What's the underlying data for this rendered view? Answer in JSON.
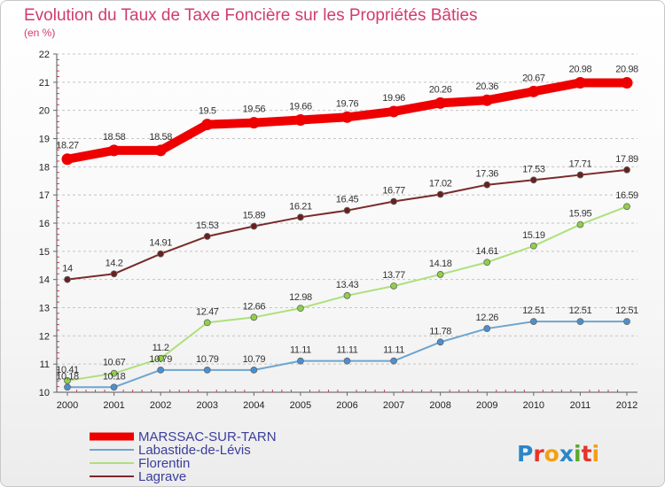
{
  "title": "Evolution du Taux de Taxe Foncière sur les Propriétés Bâties",
  "subtitle": "(en %)",
  "logo": {
    "letters": [
      "P",
      "r",
      "o",
      "x",
      "i",
      "t",
      "i"
    ],
    "colors": [
      "#2b86c8",
      "#e6342a",
      "#f2a014",
      "#2b86c8",
      "#5aaa2a",
      "#e6342a",
      "#f2a014"
    ]
  },
  "chart_data": {
    "type": "line",
    "title": "Evolution du Taux de Taxe Foncière sur les Propriétés Bâties",
    "ylabel": "(en %)",
    "xlabel": "",
    "ylim": [
      10,
      22
    ],
    "yticks": [
      10,
      11,
      12,
      13,
      14,
      15,
      16,
      17,
      18,
      19,
      20,
      21,
      22
    ],
    "x": [
      "2000",
      "2001",
      "2002",
      "2003",
      "2004",
      "2005",
      "2006",
      "2007",
      "2008",
      "2009",
      "2010",
      "2011",
      "2012"
    ],
    "legend_position": "bottom-left",
    "series": [
      {
        "name": "MARSSAC-SUR-TARN",
        "color": "#ee0000",
        "style": "thick",
        "values": [
          18.27,
          18.58,
          18.58,
          19.5,
          19.56,
          19.66,
          19.76,
          19.96,
          20.26,
          20.36,
          20.67,
          20.98,
          20.98
        ],
        "labels": [
          "18.27",
          "18.58",
          "18.58",
          "19.5",
          "19.56",
          "19.66",
          "19.76",
          "19.96",
          "20.26",
          "20.36",
          "20.67",
          "20.98",
          "20.98"
        ]
      },
      {
        "name": "Labastide-de-Lévis",
        "color": "#6fa5cf",
        "point_color": "#4a90d0",
        "style": "thin",
        "values": [
          10.18,
          10.18,
          10.79,
          10.79,
          10.79,
          11.11,
          11.11,
          11.11,
          11.78,
          12.26,
          12.51,
          12.51,
          12.51
        ],
        "labels": [
          "10.18",
          "10.18",
          "10.79",
          "10.79",
          "10.79",
          "11.11",
          "11.11",
          "11.11",
          "11.78",
          "12.26",
          "12.51",
          "12.51",
          "12.51"
        ]
      },
      {
        "name": "Florentin",
        "color": "#aee07c",
        "point_color": "#8ed04a",
        "style": "thin",
        "values": [
          10.41,
          10.67,
          11.2,
          12.47,
          12.66,
          12.98,
          13.43,
          13.77,
          14.18,
          14.61,
          15.19,
          15.95,
          16.59
        ],
        "labels": [
          "10.41",
          "10.67",
          "11.2",
          "12.47",
          "12.66",
          "12.98",
          "13.43",
          "13.77",
          "14.18",
          "14.61",
          "15.19",
          "15.95",
          "16.59"
        ]
      },
      {
        "name": "Lagrave",
        "color": "#7a2a2a",
        "point_color": "#6a1f1f",
        "style": "thin",
        "values": [
          14,
          14.2,
          14.91,
          15.53,
          15.89,
          16.21,
          16.45,
          16.77,
          17.02,
          17.36,
          17.53,
          17.71,
          17.89
        ],
        "labels": [
          "14",
          "14.2",
          "14.91",
          "15.53",
          "15.89",
          "16.21",
          "16.45",
          "16.77",
          "17.02",
          "17.36",
          "17.53",
          "17.71",
          "17.89"
        ]
      }
    ]
  }
}
